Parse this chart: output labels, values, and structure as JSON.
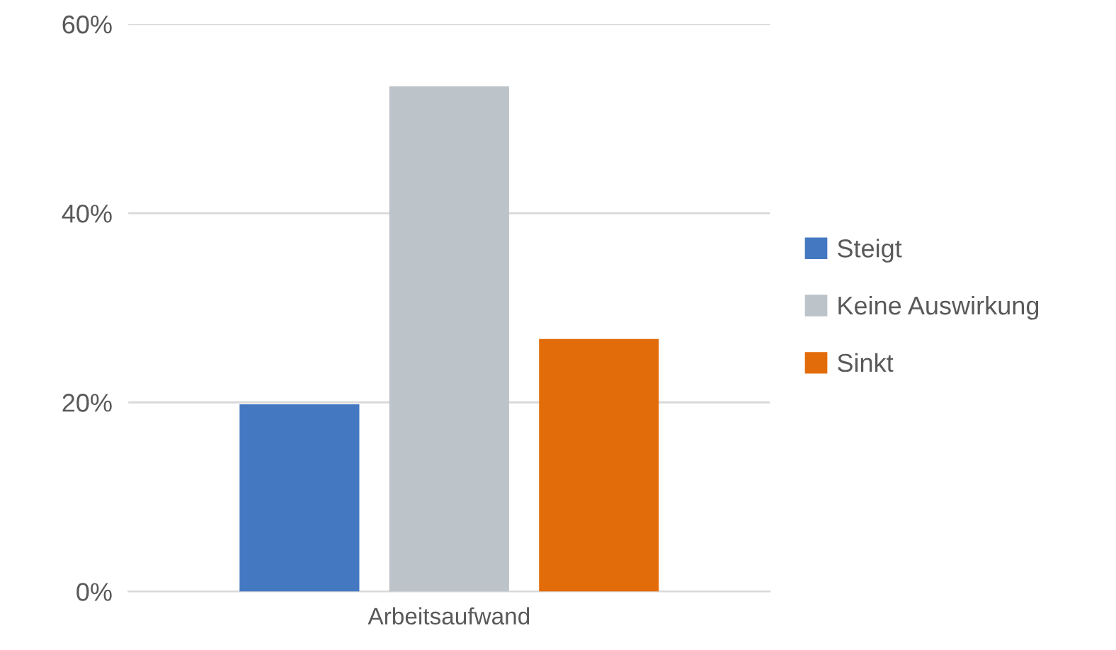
{
  "chart_data": {
    "type": "bar",
    "categories": [
      "Arbeitsaufwand"
    ],
    "series": [
      {
        "name": "Steigt",
        "color": "#4479c1",
        "values": [
          19.8
        ]
      },
      {
        "name": "Keine Auswirkung",
        "color": "#bcc3c9",
        "values": [
          53.4
        ]
      },
      {
        "name": "Sinkt",
        "color": "#e36c0a",
        "values": [
          26.7
        ]
      }
    ],
    "ylim": [
      0,
      60
    ],
    "yticks": [
      {
        "value": 0,
        "label": "0%"
      },
      {
        "value": 20,
        "label": "20%"
      },
      {
        "value": 40,
        "label": "40%"
      },
      {
        "value": 60,
        "label": "60%"
      }
    ],
    "grid": "y",
    "legend": "right"
  }
}
